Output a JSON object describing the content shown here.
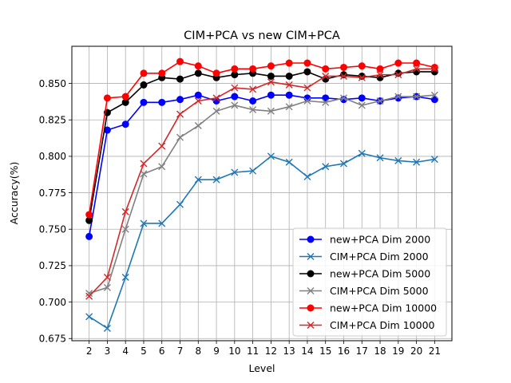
{
  "chart_data": {
    "type": "line",
    "title": "CIM+PCA vs new CIM+PCA",
    "xlabel": "Level",
    "ylabel": "Accuracy(%)",
    "x": [
      2,
      3,
      4,
      5,
      6,
      7,
      8,
      9,
      10,
      11,
      12,
      13,
      14,
      15,
      16,
      17,
      18,
      19,
      20,
      21
    ],
    "xlim": [
      1.05,
      21.95
    ],
    "ylim": [
      0.6735,
      0.8755
    ],
    "yticks": [
      "0.675",
      "0.700",
      "0.725",
      "0.750",
      "0.775",
      "0.800",
      "0.825",
      "0.850"
    ],
    "grid": true,
    "legend_position": "lower-right",
    "series": [
      {
        "name": "new+PCA Dim 2000",
        "color": "#0000ff",
        "marker": "circle",
        "values": [
          0.745,
          0.818,
          0.822,
          0.837,
          0.837,
          0.839,
          0.842,
          0.838,
          0.841,
          0.838,
          0.842,
          0.842,
          0.84,
          0.84,
          0.839,
          0.84,
          0.838,
          0.84,
          0.841,
          0.839
        ]
      },
      {
        "name": "CIM+PCA Dim 2000",
        "color": "#1f77b4",
        "marker": "x",
        "values": [
          0.69,
          0.682,
          0.717,
          0.754,
          0.754,
          0.767,
          0.784,
          0.784,
          0.789,
          0.79,
          0.8,
          0.796,
          0.786,
          0.793,
          0.795,
          0.802,
          0.799,
          0.797,
          0.796,
          0.798
        ]
      },
      {
        "name": "new+PCA Dim 5000",
        "color": "#000000",
        "marker": "circle",
        "values": [
          0.756,
          0.83,
          0.837,
          0.849,
          0.854,
          0.853,
          0.857,
          0.854,
          0.856,
          0.857,
          0.855,
          0.855,
          0.858,
          0.853,
          0.856,
          0.855,
          0.854,
          0.857,
          0.858,
          0.858
        ]
      },
      {
        "name": "CIM+PCA Dim 5000",
        "color": "#808080",
        "marker": "x",
        "values": [
          0.706,
          0.71,
          0.75,
          0.788,
          0.793,
          0.813,
          0.821,
          0.831,
          0.835,
          0.832,
          0.831,
          0.834,
          0.838,
          0.837,
          0.84,
          0.835,
          0.838,
          0.841,
          0.841,
          0.842
        ]
      },
      {
        "name": "new+PCA Dim 10000",
        "color": "#ff0000",
        "marker": "circle",
        "values": [
          0.76,
          0.84,
          0.841,
          0.857,
          0.857,
          0.865,
          0.862,
          0.857,
          0.86,
          0.86,
          0.862,
          0.864,
          0.864,
          0.86,
          0.861,
          0.862,
          0.86,
          0.864,
          0.864,
          0.861
        ]
      },
      {
        "name": "CIM+PCA Dim 10000",
        "color": "#d62728",
        "marker": "x",
        "values": [
          0.704,
          0.717,
          0.762,
          0.795,
          0.807,
          0.829,
          0.838,
          0.84,
          0.847,
          0.846,
          0.851,
          0.849,
          0.847,
          0.855,
          0.855,
          0.854,
          0.856,
          0.856,
          0.86,
          0.86
        ]
      }
    ]
  }
}
